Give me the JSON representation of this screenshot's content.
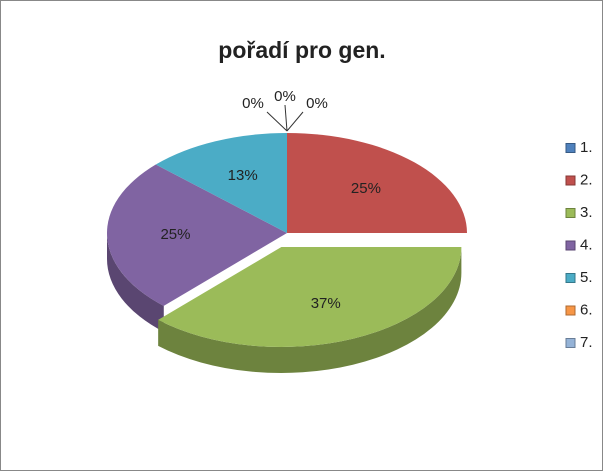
{
  "chart_data": {
    "type": "pie3d",
    "title": "pořadí pro gen.",
    "categories": [
      "1.",
      "2.",
      "3.",
      "4.",
      "5.",
      "6.",
      "7."
    ],
    "values": [
      0,
      25,
      37,
      25,
      13,
      0,
      0
    ],
    "value_labels": [
      "0%",
      "25%",
      "37%",
      "25%",
      "13%",
      "0%",
      "0%"
    ],
    "colors": [
      "#4f81bd",
      "#c0504d",
      "#9bbb59",
      "#8064a2",
      "#4bacc6",
      "#f79646",
      "#95b3d7"
    ],
    "exploded": [
      2
    ],
    "legend": "right"
  }
}
